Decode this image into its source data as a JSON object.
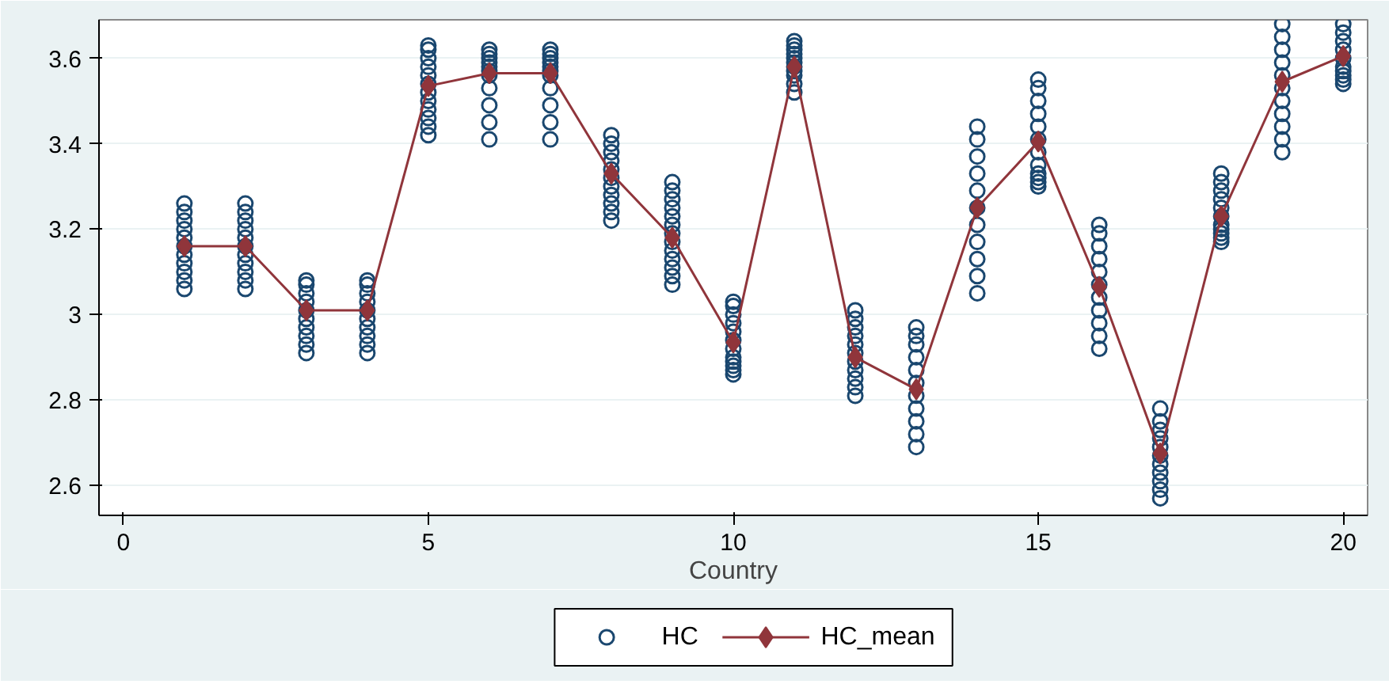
{
  "chart_data": {
    "type": "scatter",
    "xlabel": "Country",
    "xlim": [
      -0.4,
      20.4
    ],
    "xticks": [
      0,
      5,
      10,
      15,
      20
    ],
    "ylim": [
      2.53,
      3.69
    ],
    "yticks": [
      {
        "value": 2.6,
        "label": "2.6"
      },
      {
        "value": 2.8,
        "label": "2.8"
      },
      {
        "value": 3,
        "label": "3"
      },
      {
        "value": 3.2,
        "label": "3.2"
      },
      {
        "value": 3.4,
        "label": "3.4"
      },
      {
        "value": 3.6,
        "label": "3.6"
      }
    ],
    "grid": "y",
    "legend": "bottom",
    "series": [
      {
        "name": "HC",
        "marker": "circle",
        "color": "#1a476f",
        "x": [
          1,
          1,
          1,
          1,
          1,
          1,
          1,
          1,
          1,
          1,
          1,
          2,
          2,
          2,
          2,
          2,
          2,
          2,
          2,
          2,
          2,
          2,
          3,
          3,
          3,
          3,
          3,
          3,
          3,
          3,
          3,
          3,
          4,
          4,
          4,
          4,
          4,
          4,
          4,
          4,
          4,
          4,
          5,
          5,
          5,
          5,
          5,
          5,
          5,
          5,
          5,
          5,
          5,
          5,
          6,
          6,
          6,
          6,
          6,
          6,
          6,
          6,
          6,
          6,
          6,
          7,
          7,
          7,
          7,
          7,
          7,
          7,
          7,
          7,
          7,
          7,
          8,
          8,
          8,
          8,
          8,
          8,
          8,
          8,
          8,
          8,
          8,
          9,
          9,
          9,
          9,
          9,
          9,
          9,
          9,
          9,
          9,
          9,
          9,
          9,
          10,
          10,
          10,
          10,
          10,
          10,
          10,
          10,
          10,
          10,
          10,
          10,
          11,
          11,
          11,
          11,
          11,
          11,
          11,
          11,
          11,
          11,
          11,
          12,
          12,
          12,
          12,
          12,
          12,
          12,
          12,
          12,
          12,
          12,
          13,
          13,
          13,
          13,
          13,
          13,
          13,
          13,
          13,
          13,
          13,
          14,
          14,
          14,
          14,
          14,
          14,
          14,
          14,
          14,
          14,
          14,
          15,
          15,
          15,
          15,
          15,
          15,
          15,
          15,
          15,
          15,
          15,
          15,
          16,
          16,
          16,
          16,
          16,
          16,
          16,
          16,
          16,
          16,
          16,
          17,
          17,
          17,
          17,
          17,
          17,
          17,
          17,
          17,
          17,
          17,
          18,
          18,
          18,
          18,
          18,
          18,
          18,
          18,
          18,
          18,
          18,
          19,
          19,
          19,
          19,
          19,
          19,
          19,
          19,
          19,
          19,
          19,
          20,
          20,
          20,
          20,
          20,
          20,
          20,
          20,
          20,
          20
        ],
        "values": [
          3.06,
          3.08,
          3.1,
          3.12,
          3.14,
          3.16,
          3.18,
          3.2,
          3.22,
          3.24,
          3.26,
          3.06,
          3.08,
          3.1,
          3.12,
          3.14,
          3.16,
          3.18,
          3.2,
          3.22,
          3.24,
          3.26,
          2.91,
          2.93,
          2.95,
          2.97,
          2.99,
          3.01,
          3.03,
          3.05,
          3.07,
          3.08,
          2.91,
          2.93,
          2.95,
          2.97,
          2.99,
          3.01,
          3.03,
          3.05,
          3.07,
          3.08,
          3.42,
          3.44,
          3.46,
          3.48,
          3.5,
          3.52,
          3.54,
          3.56,
          3.58,
          3.6,
          3.62,
          3.63,
          3.41,
          3.45,
          3.49,
          3.53,
          3.56,
          3.57,
          3.58,
          3.59,
          3.6,
          3.61,
          3.62,
          3.41,
          3.45,
          3.49,
          3.53,
          3.56,
          3.57,
          3.58,
          3.59,
          3.6,
          3.61,
          3.62,
          3.22,
          3.24,
          3.26,
          3.28,
          3.3,
          3.32,
          3.34,
          3.36,
          3.38,
          3.4,
          3.42,
          3.07,
          3.09,
          3.11,
          3.13,
          3.15,
          3.17,
          3.19,
          3.21,
          3.23,
          3.25,
          3.27,
          3.29,
          3.31,
          2.86,
          2.87,
          2.88,
          2.89,
          2.9,
          2.92,
          2.94,
          2.96,
          2.98,
          3.0,
          3.02,
          3.03,
          3.52,
          3.54,
          3.56,
          3.57,
          3.58,
          3.59,
          3.6,
          3.61,
          3.62,
          3.63,
          3.64,
          2.81,
          2.83,
          2.85,
          2.87,
          2.89,
          2.91,
          2.93,
          2.95,
          2.97,
          2.99,
          3.01,
          2.69,
          2.72,
          2.75,
          2.78,
          2.81,
          2.84,
          2.87,
          2.9,
          2.93,
          2.95,
          2.97,
          3.05,
          3.09,
          3.13,
          3.17,
          3.21,
          3.25,
          3.29,
          3.33,
          3.37,
          3.41,
          3.44,
          3.3,
          3.31,
          3.32,
          3.33,
          3.35,
          3.38,
          3.41,
          3.44,
          3.47,
          3.5,
          3.53,
          3.55,
          2.92,
          2.95,
          2.98,
          3.01,
          3.04,
          3.07,
          3.1,
          3.13,
          3.16,
          3.19,
          3.21,
          2.57,
          2.59,
          2.61,
          2.63,
          2.65,
          2.67,
          2.69,
          2.71,
          2.73,
          2.75,
          2.78,
          3.17,
          3.18,
          3.19,
          3.2,
          3.21,
          3.23,
          3.25,
          3.27,
          3.29,
          3.31,
          3.33,
          3.38,
          3.41,
          3.44,
          3.47,
          3.5,
          3.53,
          3.56,
          3.59,
          3.62,
          3.65,
          3.68,
          3.54,
          3.55,
          3.56,
          3.57,
          3.58,
          3.6,
          3.62,
          3.64,
          3.66,
          3.68
        ]
      },
      {
        "name": "HC_mean",
        "type": "line",
        "marker": "diamond",
        "line_style": "solid",
        "color": "#90353b",
        "x": [
          1,
          2,
          3,
          4,
          5,
          6,
          7,
          8,
          9,
          10,
          11,
          12,
          13,
          14,
          15,
          16,
          17,
          18,
          19,
          20
        ],
        "values": [
          3.16,
          3.16,
          3.01,
          3.01,
          3.535,
          3.565,
          3.565,
          3.33,
          3.18,
          2.935,
          3.58,
          2.9,
          2.825,
          3.25,
          3.405,
          3.065,
          2.675,
          3.23,
          3.545,
          3.605
        ]
      }
    ]
  }
}
